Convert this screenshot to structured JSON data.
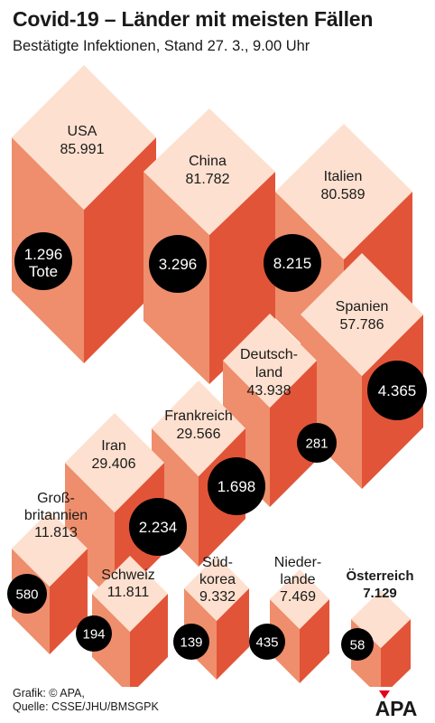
{
  "header": {
    "title": "Covid-19 – Länder mit meisten Fällen",
    "subtitle": "Bestätigte Infektionen, Stand 27. 3., 9.00 Uhr"
  },
  "footer": {
    "credit_line1": "Grafik: © APA,",
    "credit_line2": "Quelle: CSSE/JHU/BMSGPK",
    "logo_text": "APA"
  },
  "colors": {
    "top": "#fde0cf",
    "left": "#ee8e6c",
    "right": "#e25438",
    "bubble": "#000000",
    "bubble_text": "#ffffff"
  },
  "chart_data": {
    "type": "bar",
    "encoding": "3d-cube-volume",
    "series": [
      {
        "name": "Bestätigte Infektionen",
        "values": [
          85991,
          81782,
          80589,
          57786,
          43938,
          29566,
          29406,
          11813,
          11811,
          9332,
          7469,
          7129
        ]
      },
      {
        "name": "Tote",
        "values": [
          1296,
          3296,
          8215,
          4365,
          281,
          1698,
          2234,
          580,
          194,
          139,
          435,
          58
        ]
      }
    ],
    "countries": [
      {
        "label_lines": [
          "USA"
        ],
        "cases": "85.991",
        "deaths": "1.296",
        "deaths_unit": "Tote"
      },
      {
        "label_lines": [
          "China"
        ],
        "cases": "81.782",
        "deaths": "3.296"
      },
      {
        "label_lines": [
          "Italien"
        ],
        "cases": "80.589",
        "deaths": "8.215"
      },
      {
        "label_lines": [
          "Spanien"
        ],
        "cases": "57.786",
        "deaths": "4.365"
      },
      {
        "label_lines": [
          "Deutsch-",
          "land"
        ],
        "cases": "43.938",
        "deaths": "281"
      },
      {
        "label_lines": [
          "Frankreich"
        ],
        "cases": "29.566",
        "deaths": "1.698"
      },
      {
        "label_lines": [
          "Iran"
        ],
        "cases": "29.406",
        "deaths": "2.234"
      },
      {
        "label_lines": [
          "Groß-",
          "britannien"
        ],
        "cases": "11.813",
        "deaths": "580"
      },
      {
        "label_lines": [
          "Schweiz"
        ],
        "cases": "11.811",
        "deaths": "194"
      },
      {
        "label_lines": [
          "Süd-",
          "korea"
        ],
        "cases": "9.332",
        "deaths": "139"
      },
      {
        "label_lines": [
          "Nieder-",
          "lande"
        ],
        "cases": "7.469",
        "deaths": "435"
      },
      {
        "label_lines": [
          "Österreich"
        ],
        "cases": "7.129",
        "deaths": "58",
        "highlight": true
      }
    ]
  }
}
